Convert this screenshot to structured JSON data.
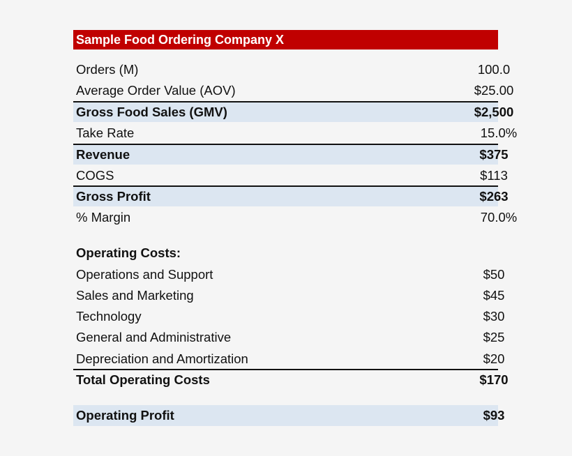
{
  "title": "Sample Food Ordering Company X",
  "rows": [
    {
      "label": "Orders (M)",
      "value": "100.0"
    },
    {
      "label": "Average Order Value (AOV)",
      "value": "$25.00"
    },
    {
      "label": "Gross Food Sales (GMV)",
      "value": "$2,500"
    },
    {
      "label": "Take Rate",
      "value": "15.0%"
    },
    {
      "label": "Revenue",
      "value": "$375"
    },
    {
      "label": "COGS",
      "value": "$113"
    },
    {
      "label": "Gross Profit",
      "value": "$263"
    },
    {
      "label": "% Margin",
      "value": "70.0%"
    },
    {
      "label": "Operating Costs:",
      "value": ""
    },
    {
      "label": "Operations and Support",
      "value": "$50"
    },
    {
      "label": "Sales and Marketing",
      "value": "$45"
    },
    {
      "label": "Technology",
      "value": "$30"
    },
    {
      "label": "General and Administrative",
      "value": "$25"
    },
    {
      "label": "Depreciation and Amortization",
      "value": "$20"
    },
    {
      "label": "Total Operating Costs",
      "value": "$170"
    },
    {
      "label": "Operating Profit",
      "value": "$93"
    }
  ],
  "colors": {
    "header": "#c00000",
    "highlight": "#dce6f1"
  }
}
